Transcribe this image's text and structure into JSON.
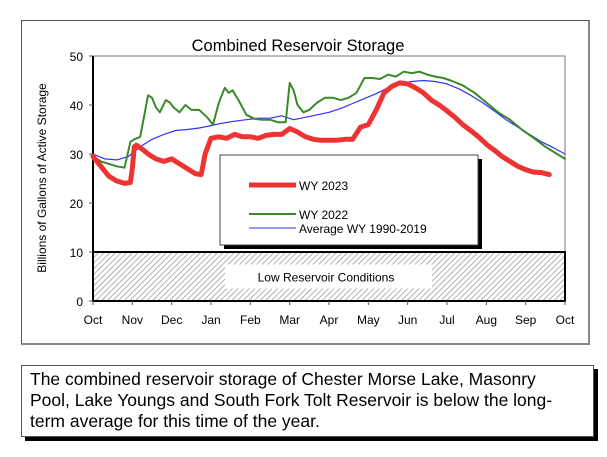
{
  "chart_data": {
    "type": "line",
    "title": "Combined Reservoir Storage",
    "xlabel": "",
    "ylabel": "Billions of Gallons of Active Storage",
    "ylim": [
      0,
      50
    ],
    "yticks": [
      "0",
      "10",
      "20",
      "30",
      "40",
      "50"
    ],
    "xlim": [
      0,
      12
    ],
    "xticks": [
      "Oct",
      "Nov",
      "Dec",
      "Jan",
      "Feb",
      "Mar",
      "Apr",
      "May",
      "Jun",
      "Jul",
      "Aug",
      "Sep",
      "Oct"
    ],
    "grid": false,
    "legend": "center",
    "annotation": "Low Reservoir Conditions",
    "low_threshold": 10,
    "series": [
      {
        "name": "WY 2023",
        "color": "#ee3333",
        "x": [
          0,
          0.2,
          0.4,
          0.6,
          0.8,
          0.95,
          1.0,
          1.05,
          1.1,
          1.25,
          1.4,
          1.6,
          1.8,
          2.0,
          2.2,
          2.4,
          2.6,
          2.75,
          2.85,
          3.0,
          3.2,
          3.4,
          3.6,
          3.8,
          4.0,
          4.2,
          4.4,
          4.6,
          4.8,
          5.0,
          5.2,
          5.4,
          5.6,
          5.8,
          6.0,
          6.2,
          6.4,
          6.6,
          6.8,
          7.0,
          7.2,
          7.4,
          7.6,
          7.8,
          8.0,
          8.2,
          8.4,
          8.6,
          8.8,
          9.0,
          9.2,
          9.4,
          9.6,
          9.8,
          10.0,
          10.2,
          10.4,
          10.6,
          10.8,
          11.0,
          11.2,
          11.4,
          11.6
        ],
        "values": [
          29.5,
          27.5,
          25.5,
          24.5,
          24.0,
          24.2,
          27.0,
          31.5,
          31.8,
          31.0,
          30.0,
          29.0,
          28.5,
          29.0,
          28.0,
          27.0,
          26.0,
          25.8,
          30.0,
          33.2,
          33.5,
          33.2,
          34.0,
          33.5,
          33.5,
          33.2,
          33.8,
          34.0,
          34.0,
          35.2,
          34.5,
          33.5,
          33.0,
          32.8,
          32.8,
          32.8,
          33.0,
          33.0,
          35.5,
          36.0,
          39.0,
          42.5,
          43.8,
          44.5,
          44.3,
          43.5,
          42.5,
          41.0,
          40.0,
          38.8,
          37.5,
          36.0,
          34.8,
          33.5,
          32.0,
          30.8,
          29.5,
          28.5,
          27.5,
          26.8,
          26.3,
          26.2,
          25.8
        ]
      },
      {
        "name": "WY 2022",
        "color": "#3a8a2a",
        "x": [
          0,
          0.2,
          0.4,
          0.6,
          0.8,
          0.95,
          1.05,
          1.2,
          1.4,
          1.5,
          1.6,
          1.7,
          1.85,
          1.95,
          2.05,
          2.2,
          2.35,
          2.5,
          2.7,
          2.9,
          3.05,
          3.2,
          3.35,
          3.45,
          3.55,
          3.7,
          3.9,
          4.1,
          4.3,
          4.5,
          4.7,
          4.9,
          5.0,
          5.1,
          5.2,
          5.35,
          5.5,
          5.7,
          5.9,
          6.1,
          6.3,
          6.5,
          6.7,
          6.9,
          7.1,
          7.3,
          7.5,
          7.7,
          7.9,
          8.1,
          8.3,
          8.5,
          8.7,
          8.9,
          9.1,
          9.4,
          9.7,
          10.0,
          10.3,
          10.6,
          10.9,
          11.2,
          11.5,
          11.8,
          12.0
        ],
        "values": [
          29.5,
          28.5,
          28.0,
          27.5,
          27.2,
          32.5,
          33.0,
          33.5,
          42.0,
          41.5,
          39.5,
          38.5,
          41.0,
          40.5,
          39.5,
          38.5,
          40.0,
          39.0,
          39.0,
          37.5,
          36.0,
          40.5,
          43.5,
          42.5,
          43.0,
          41.0,
          38.0,
          37.2,
          37.0,
          37.0,
          36.5,
          36.5,
          44.5,
          43.0,
          40.0,
          38.5,
          39.0,
          40.5,
          41.5,
          41.5,
          41.0,
          41.5,
          42.5,
          45.5,
          45.5,
          45.3,
          46.2,
          45.8,
          46.8,
          46.5,
          46.8,
          46.2,
          45.8,
          45.5,
          45.0,
          44.0,
          42.5,
          40.5,
          38.5,
          37.0,
          35.0,
          33.3,
          31.5,
          30.0,
          29.0
        ]
      },
      {
        "name": "Average WY 1990-2019",
        "color": "#3333ee",
        "x": [
          0,
          0.3,
          0.6,
          0.9,
          1.2,
          1.5,
          1.8,
          2.1,
          2.4,
          2.7,
          3.0,
          3.3,
          3.6,
          3.9,
          4.2,
          4.5,
          4.8,
          5.1,
          5.4,
          5.7,
          6.0,
          6.3,
          6.6,
          6.9,
          7.2,
          7.5,
          7.8,
          8.1,
          8.4,
          8.7,
          9.0,
          9.3,
          9.6,
          9.9,
          10.2,
          10.5,
          10.8,
          11.1,
          11.4,
          11.7,
          12.0
        ],
        "values": [
          30.0,
          29.0,
          28.8,
          29.5,
          31.5,
          33.0,
          34.0,
          34.8,
          35.0,
          35.3,
          35.8,
          36.3,
          36.7,
          37.0,
          37.3,
          37.3,
          37.8,
          37.0,
          37.5,
          38.0,
          38.5,
          39.3,
          40.3,
          41.3,
          42.3,
          43.5,
          44.3,
          44.8,
          45.0,
          44.8,
          44.3,
          43.3,
          42.0,
          40.5,
          38.8,
          37.0,
          35.5,
          34.0,
          32.5,
          31.3,
          30.0
        ]
      }
    ]
  },
  "note": {
    "lines": [
      "The combined reservoir storage of Chester Morse Lake, Masonry",
      "Pool, Lake Youngs and South Fork Tolt Reservoir is below the long-",
      "term average for this time of the year."
    ]
  }
}
